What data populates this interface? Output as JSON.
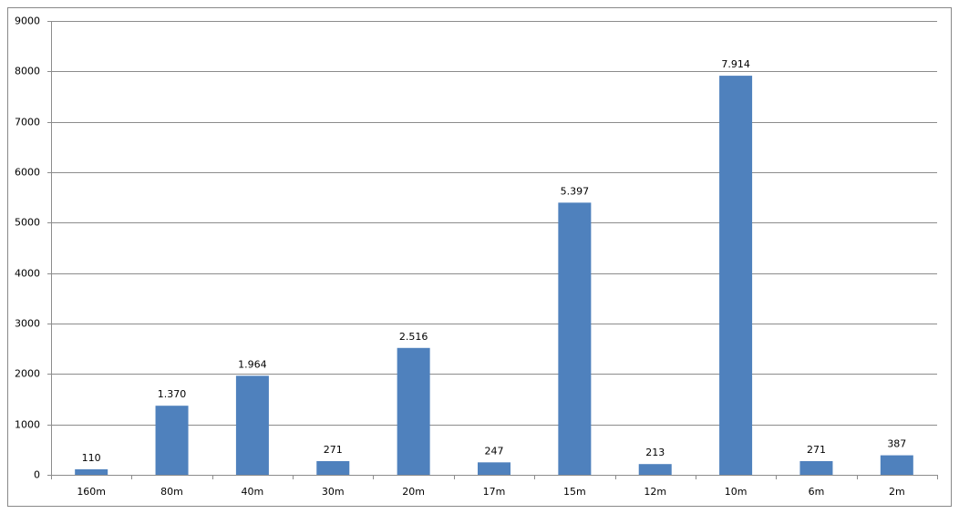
{
  "chart_data": {
    "type": "bar",
    "categories": [
      "160m",
      "80m",
      "40m",
      "30m",
      "20m",
      "17m",
      "15m",
      "12m",
      "10m",
      "6m",
      "2m"
    ],
    "values": [
      110,
      1370,
      1964,
      271,
      2516,
      247,
      5397,
      213,
      7914,
      271,
      387
    ],
    "value_labels": [
      "110",
      "1.370",
      "1.964",
      "271",
      "2.516",
      "247",
      "5.397",
      "213",
      "7.914",
      "271",
      "387"
    ],
    "color": "#4f81bd",
    "ylim": [
      0,
      9000
    ],
    "yticks": [
      0,
      1000,
      2000,
      3000,
      4000,
      5000,
      6000,
      7000,
      8000,
      9000
    ],
    "grid": true
  }
}
